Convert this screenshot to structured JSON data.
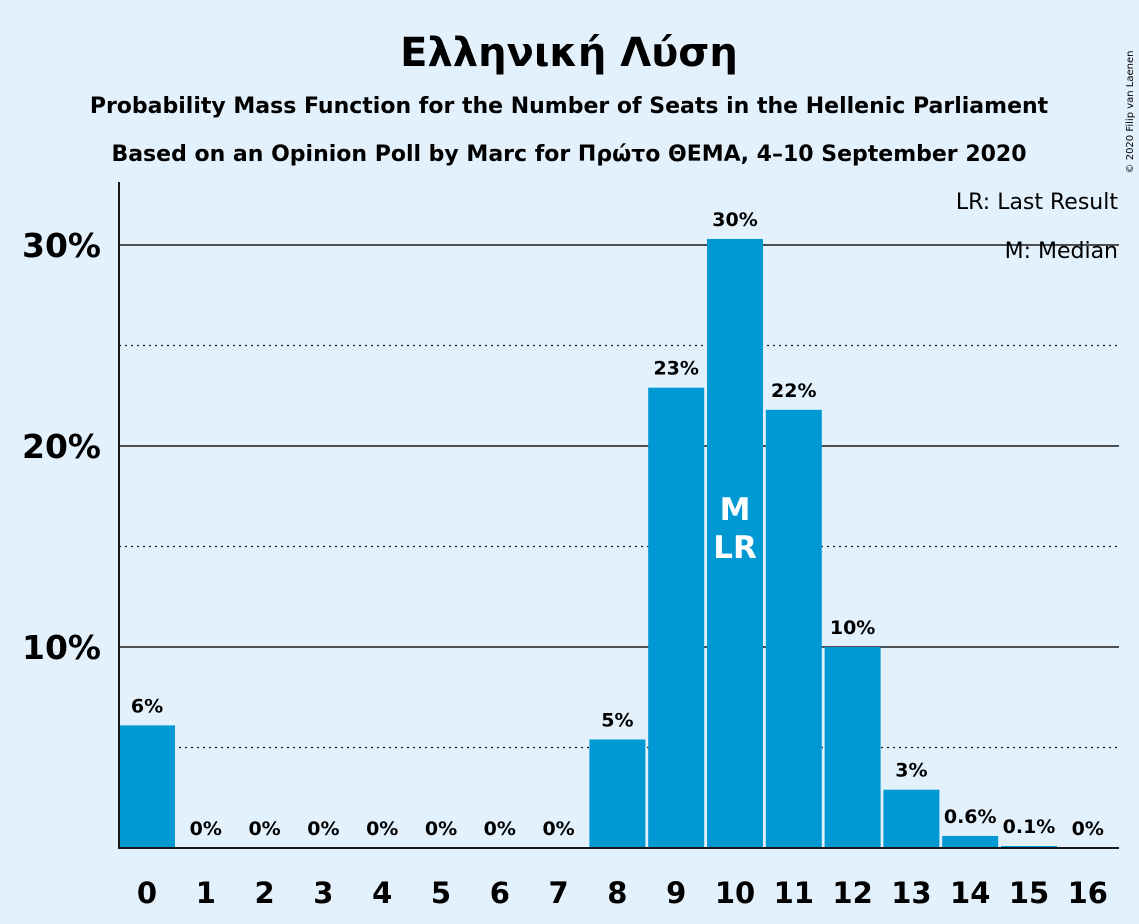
{
  "chart_data": {
    "type": "bar",
    "title": "Ελληνική Λύση",
    "subtitle_line1": "Probability Mass Function for the Number of Seats in the Hellenic Parliament",
    "subtitle_line2": "Based on an Opinion Poll by Marc for Πρώτο ΘΕΜΑ, 4–10 September 2020",
    "categories": [
      "0",
      "1",
      "2",
      "3",
      "4",
      "5",
      "6",
      "7",
      "8",
      "9",
      "10",
      "11",
      "12",
      "13",
      "14",
      "15",
      "16"
    ],
    "values": [
      6.1,
      0,
      0,
      0,
      0,
      0,
      0,
      0,
      5.4,
      22.9,
      30.3,
      21.8,
      10.0,
      2.9,
      0.6,
      0.1,
      0
    ],
    "data_labels": [
      "6%",
      "0%",
      "0%",
      "0%",
      "0%",
      "0%",
      "0%",
      "0%",
      "5%",
      "23%",
      "30%",
      "22%",
      "10%",
      "3%",
      "0.6%",
      "0.1%",
      "0%"
    ],
    "ylim": [
      0,
      33
    ],
    "y_ticks": [
      10,
      20,
      30
    ],
    "y_tick_labels": [
      "10%",
      "20%",
      "30%"
    ],
    "y_minor_gridlines": [
      5,
      15,
      25
    ],
    "grid": true,
    "bar_color": "#0099d3",
    "last_result_seats": "10",
    "median_seats": "10",
    "bar_markers": [
      "M",
      "LR"
    ],
    "legend": {
      "placement": "top-right",
      "last_result": "LR: Last Result",
      "median": "M: Median"
    },
    "copyright": "© 2020 Filip van Laenen"
  }
}
